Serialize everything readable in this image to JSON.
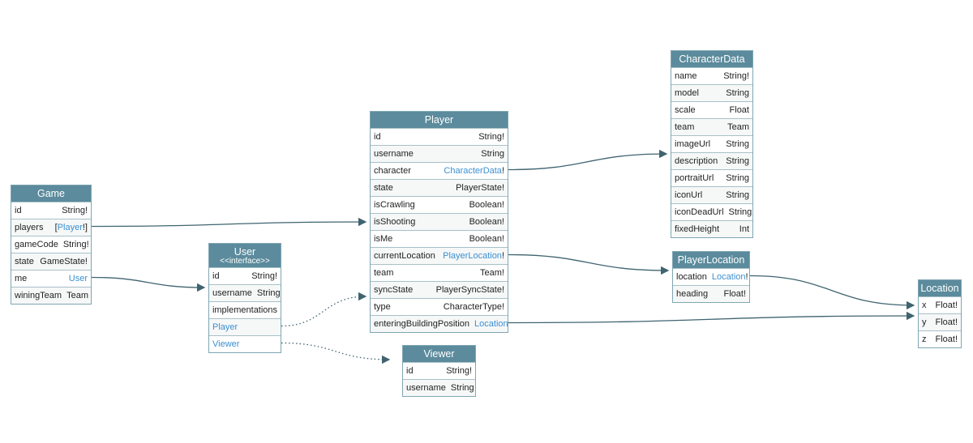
{
  "nodes": [
    {
      "title": "Game",
      "fields": [
        {
          "name": "id",
          "type": "String!"
        },
        {
          "name": "players",
          "type": {
            "prefix": "[",
            "link": "Player",
            "suffix": "!]"
          }
        },
        {
          "name": "gameCode",
          "type": "String!"
        },
        {
          "name": "state",
          "type": "GameState!"
        },
        {
          "name": "me",
          "type": {
            "link": "User"
          }
        },
        {
          "name": "winingTeam",
          "type": "Team"
        }
      ]
    },
    {
      "title": "User",
      "subtitle": "<<interface>>",
      "fields": [
        {
          "name": "id",
          "type": "String!"
        },
        {
          "name": "username",
          "type": "String"
        }
      ],
      "implementations": {
        "label": "implementations",
        "items": [
          "Player",
          "Viewer"
        ]
      }
    },
    {
      "title": "Player",
      "fields": [
        {
          "name": "id",
          "type": "String!"
        },
        {
          "name": "username",
          "type": "String"
        },
        {
          "name": "character",
          "type": {
            "link": "CharacterData",
            "suffix": "!"
          }
        },
        {
          "name": "state",
          "type": "PlayerState!"
        },
        {
          "name": "isCrawling",
          "type": "Boolean!"
        },
        {
          "name": "isShooting",
          "type": "Boolean!"
        },
        {
          "name": "isMe",
          "type": "Boolean!"
        },
        {
          "name": "currentLocation",
          "type": {
            "link": "PlayerLocation",
            "suffix": "!"
          }
        },
        {
          "name": "team",
          "type": "Team!"
        },
        {
          "name": "syncState",
          "type": "PlayerSyncState!"
        },
        {
          "name": "type",
          "type": "CharacterType!"
        },
        {
          "name": "enteringBuildingPosition",
          "type": {
            "link": "Location"
          }
        }
      ]
    },
    {
      "title": "Viewer",
      "fields": [
        {
          "name": "id",
          "type": "String!"
        },
        {
          "name": "username",
          "type": "String"
        }
      ]
    },
    {
      "title": "CharacterData",
      "fields": [
        {
          "name": "name",
          "type": "String!"
        },
        {
          "name": "model",
          "type": "String"
        },
        {
          "name": "scale",
          "type": "Float"
        },
        {
          "name": "team",
          "type": "Team"
        },
        {
          "name": "imageUrl",
          "type": "String"
        },
        {
          "name": "description",
          "type": "String"
        },
        {
          "name": "portraitUrl",
          "type": "String"
        },
        {
          "name": "iconUrl",
          "type": "String"
        },
        {
          "name": "iconDeadUrl",
          "type": "String"
        },
        {
          "name": "fixedHeight",
          "type": "Int"
        }
      ]
    },
    {
      "title": "PlayerLocation",
      "fields": [
        {
          "name": "location",
          "type": {
            "link": "Location",
            "suffix": "!"
          }
        },
        {
          "name": "heading",
          "type": "Float!"
        }
      ]
    },
    {
      "title": "Location",
      "fields": [
        {
          "name": "x",
          "type": "Float!"
        },
        {
          "name": "y",
          "type": "Float!"
        },
        {
          "name": "z",
          "type": "Float!"
        }
      ]
    }
  ]
}
